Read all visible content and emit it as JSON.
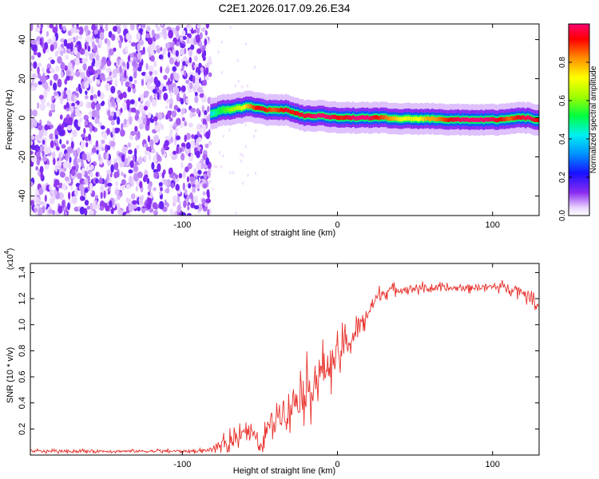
{
  "page_title": "C2E1.2026.017.09.26.E34",
  "chart_data": [
    {
      "type": "heatmap",
      "id": "spectrogram",
      "xlabel": "Height of straight line (km)",
      "ylabel": "Frequency (Hz)",
      "xlim": [
        -198,
        130
      ],
      "ylim": [
        -50,
        48
      ],
      "xticks": [
        -100,
        0,
        100
      ],
      "yticks": [
        -40,
        -20,
        0,
        20,
        40
      ],
      "xtick_labels": [
        "-100",
        "0",
        "100"
      ],
      "ytick_labels": [
        "-40",
        "-20",
        "0",
        "20",
        "40"
      ],
      "noise_region_x": [
        -198,
        -82
      ],
      "ridge": {
        "x": [
          -82,
          -78,
          -74,
          -70,
          -66,
          -62,
          -58,
          -54,
          -50,
          -46,
          -42,
          -38,
          -34,
          -30,
          -26,
          -22,
          -18,
          -14,
          -10,
          -6,
          -2,
          2,
          6,
          10,
          14,
          18,
          22,
          26,
          30,
          34,
          38,
          42,
          46,
          50,
          54,
          58,
          62,
          66,
          70,
          74,
          78,
          82,
          86,
          90,
          94,
          98,
          102,
          106,
          110,
          114,
          118,
          122,
          126,
          130
        ],
        "freq": [
          2,
          3,
          4,
          4,
          5,
          5,
          6,
          5,
          5,
          4,
          4,
          4,
          4,
          3,
          2,
          1,
          1,
          1,
          1,
          0.5,
          0.5,
          0,
          0,
          0,
          0,
          0,
          0,
          0,
          0,
          -0.5,
          -0.5,
          -0.5,
          -0.5,
          -0.5,
          -0.5,
          -0.5,
          -0.5,
          -0.5,
          -1,
          -1,
          -1,
          -1,
          -1,
          -1,
          -1,
          -1,
          -1,
          -1,
          -0.5,
          0,
          0,
          0,
          -1,
          -1
        ],
        "amplitude": [
          0.4,
          0.5,
          0.55,
          0.6,
          0.65,
          0.7,
          0.8,
          0.9,
          0.95,
          0.9,
          0.85,
          0.9,
          0.95,
          0.9,
          0.95,
          0.95,
          0.98,
          1.0,
          1.0,
          0.98,
          0.95,
          0.9,
          0.95,
          1.0,
          1.0,
          1.0,
          0.95,
          0.9,
          0.85,
          0.8,
          0.75,
          0.7,
          0.7,
          0.7,
          0.75,
          0.8,
          0.8,
          0.85,
          0.9,
          0.95,
          0.98,
          1.0,
          1.0,
          1.0,
          1.0,
          0.98,
          0.95,
          0.9,
          0.85,
          0.9,
          0.95,
          0.98,
          0.95,
          0.9
        ]
      },
      "colorbar": {
        "label": "Normalized spectral amplitude",
        "range": [
          0,
          1
        ],
        "ticks": [
          0,
          0.2,
          0.4,
          0.6,
          0.8
        ],
        "tick_labels": [
          "0.0",
          "0.2",
          "0.4",
          "0.6",
          "0.8"
        ]
      }
    },
    {
      "type": "line",
      "id": "snr",
      "xlabel": "Height of straight line (km)",
      "ylabel": "SNR (10 * v/v)",
      "scale_label": "(x10",
      "scale_exp": "4",
      "scale_close": ")",
      "xlim": [
        -198,
        130
      ],
      "ylim": [
        0,
        1.47
      ],
      "xticks": [
        -100,
        0,
        100
      ],
      "xtick_labels": [
        "-100",
        "0",
        "100"
      ],
      "yticks": [
        0.2,
        0.4,
        0.6,
        0.8,
        1.0,
        1.2,
        1.4
      ],
      "ytick_labels": [
        "0.2",
        "0.4",
        "0.6",
        "0.8",
        "1.0",
        "1.2",
        "1.4"
      ],
      "series": [
        {
          "name": "SNR",
          "color": "#e8312b",
          "x": [
            -198,
            -90,
            -82,
            -75,
            -70,
            -65,
            -60,
            -55,
            -50,
            -45,
            -40,
            -35,
            -30,
            -25,
            -20,
            -15,
            -10,
            -5,
            0,
            5,
            10,
            15,
            20,
            25,
            30,
            35,
            40,
            50,
            60,
            70,
            80,
            90,
            100,
            110,
            115,
            120,
            125,
            128,
            130
          ],
          "y": [
            0.03,
            0.03,
            0.04,
            0.08,
            0.1,
            0.15,
            0.2,
            0.18,
            0.05,
            0.2,
            0.3,
            0.35,
            0.38,
            0.45,
            0.5,
            0.55,
            0.65,
            0.7,
            0.75,
            0.85,
            0.9,
            1.0,
            1.1,
            1.2,
            1.25,
            1.27,
            1.27,
            1.28,
            1.28,
            1.28,
            1.28,
            1.29,
            1.29,
            1.29,
            1.27,
            1.25,
            1.2,
            1.17,
            1.13
          ],
          "noise": [
            0.02,
            0.02,
            0.03,
            0.08,
            0.1,
            0.12,
            0.15,
            0.15,
            0.05,
            0.15,
            0.2,
            0.25,
            0.28,
            0.3,
            0.3,
            0.3,
            0.28,
            0.25,
            0.22,
            0.2,
            0.18,
            0.15,
            0.12,
            0.1,
            0.08,
            0.06,
            0.06,
            0.06,
            0.05,
            0.05,
            0.05,
            0.05,
            0.05,
            0.06,
            0.07,
            0.08,
            0.08,
            0.06,
            0.05
          ]
        }
      ]
    }
  ]
}
